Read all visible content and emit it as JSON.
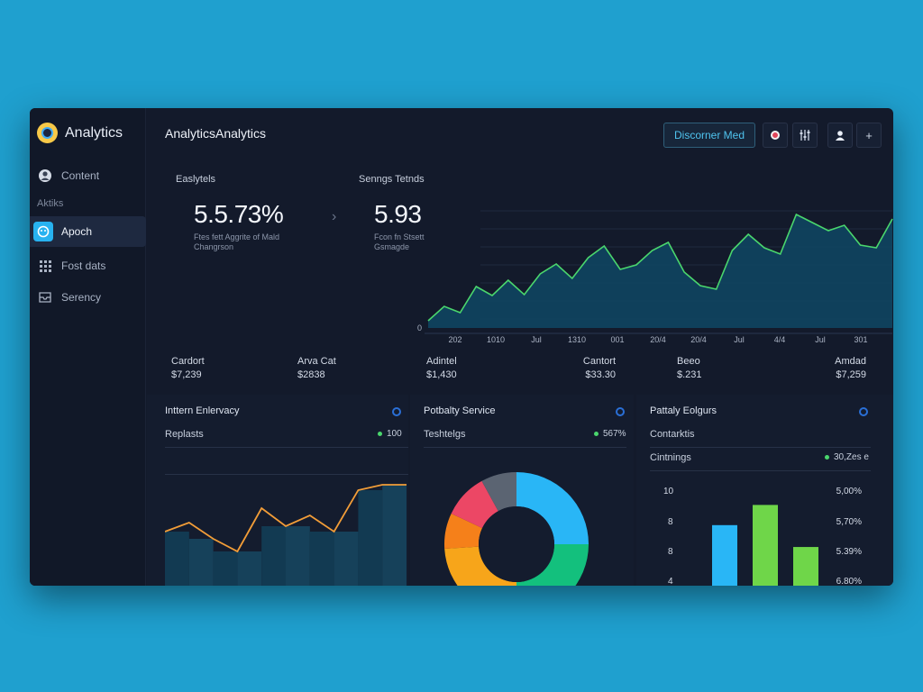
{
  "sidebar": {
    "brand": "Analytics",
    "section": "Aktiks",
    "items": [
      {
        "label": "Content",
        "icon": "profile-icon"
      },
      {
        "label": "Apoch",
        "icon": "bot-icon"
      },
      {
        "label": "Fost dats",
        "icon": "grid-icon"
      },
      {
        "label": "Serency",
        "icon": "inbox-icon"
      }
    ]
  },
  "header": {
    "title": "AnalyticsAnalytics",
    "primary_button": "Discorner Med",
    "icons": [
      "record-icon",
      "settings-icon",
      "user-icon",
      "plus-icon"
    ]
  },
  "kpis": [
    {
      "label": "Easlytels",
      "value": "5.5.73%",
      "sub1": "Ftes fett Aggrite of Mald",
      "sub2": "Changrson"
    },
    {
      "label": "Senngs Tetnds",
      "value": "5.93",
      "sub1": "Fcon fn Stsett",
      "sub2": "Gsmagde"
    }
  ],
  "main_chart": {
    "zero_label": "0",
    "x_labels": [
      "202",
      "1010",
      "Jul",
      "1310",
      "001",
      "20/4",
      "20/4",
      "Jul",
      "4/4",
      "Jul",
      "301"
    ],
    "color": "#4ad66d",
    "values": [
      8,
      24,
      17,
      46,
      36,
      53,
      37,
      60,
      71,
      55,
      78,
      91,
      65,
      70,
      86,
      95,
      62,
      47,
      43,
      86,
      104,
      89,
      82,
      126,
      117,
      108,
      114,
      92,
      89,
      121
    ]
  },
  "stats": [
    {
      "label": "Cardort",
      "value": "$7,239"
    },
    {
      "label": "Arva Cat",
      "value": "$2838"
    },
    {
      "label": "Adintel",
      "value": "$1,430"
    },
    {
      "label": "Cantort",
      "value": "$33.30"
    },
    {
      "label": "Beeo",
      "value": "$.231"
    },
    {
      "label": "Amdad",
      "value": "$7,259"
    }
  ],
  "panels": {
    "left": {
      "title": "Inttern Enlervacy",
      "sub": "Replasts",
      "badge": "100",
      "chart_data": {
        "type": "area",
        "line_color": "#f29d38",
        "values": [
          60,
          70,
          52,
          38,
          86,
          66,
          78,
          60,
          106,
          112,
          112
        ]
      }
    },
    "center": {
      "title": "Potbalty Service",
      "sub": "Teshtelgs",
      "badge": "567%",
      "chart_data": {
        "type": "pie",
        "slices": [
          {
            "value": 25,
            "color": "#29b6f6"
          },
          {
            "value": 25,
            "color": "#13c07d"
          },
          {
            "value": 24,
            "color": "#f7a51a"
          },
          {
            "value": 8,
            "color": "#f5801a"
          },
          {
            "value": 10,
            "color": "#ec4765"
          },
          {
            "value": 8,
            "color": "#5b6472"
          }
        ]
      }
    },
    "right": {
      "title": "Pattaly Eolgurs",
      "sub": "Contarktis",
      "sub2": "Cintnings",
      "badge": "30,Zes e",
      "y_labels": [
        "10",
        "8",
        "8",
        "4"
      ],
      "right_labels": [
        "5,00%",
        "5,70%",
        "5.39%",
        "6.80%"
      ],
      "chart_data": {
        "type": "bar",
        "values": [
          7.2,
          9.6,
          4.6
        ],
        "colors": [
          "#29b6f6",
          "#6fd649",
          "#6fd649"
        ]
      }
    }
  }
}
